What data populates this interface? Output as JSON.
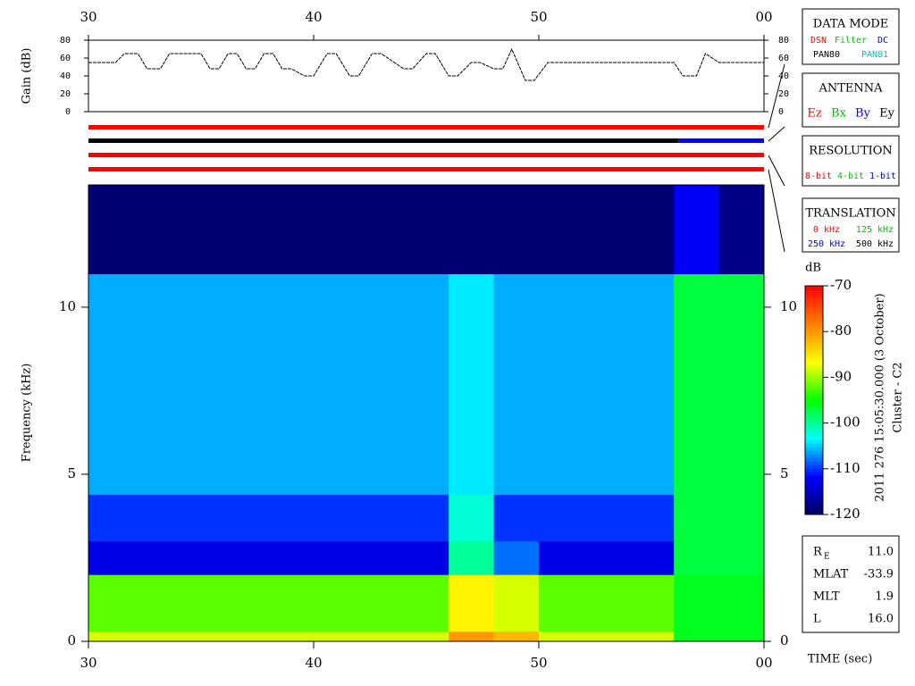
{
  "chart_data": [
    {
      "type": "line",
      "ylabel": "Gain (dB)",
      "x": [
        30,
        31.2,
        31.6,
        32.2,
        32.6,
        33.2,
        33.6,
        35.0,
        35.4,
        35.8,
        36.2,
        36.6,
        37.0,
        37.4,
        37.8,
        38.2,
        38.6,
        39.0,
        39.6,
        40.0,
        40.6,
        41.0,
        41.6,
        42.0,
        42.6,
        43.0,
        44.0,
        44.4,
        45.0,
        45.4,
        46.0,
        46.4,
        47.0,
        47.4,
        48.0,
        48.4,
        48.8,
        49.4,
        49.8,
        50.4,
        56.0,
        56.4,
        57.0,
        57.4,
        58.0,
        60
      ],
      "series": [
        {
          "color": "#000000",
          "values": [
            55,
            55,
            65,
            65,
            48,
            48,
            65,
            65,
            48,
            48,
            65,
            65,
            48,
            48,
            65,
            65,
            48,
            48,
            40,
            40,
            65,
            65,
            40,
            40,
            65,
            65,
            48,
            48,
            65,
            65,
            40,
            40,
            55,
            55,
            48,
            48,
            70,
            35,
            35,
            55,
            55,
            40,
            40,
            65,
            55,
            55
          ]
        }
      ],
      "xlim": [
        30,
        60
      ],
      "xticks": [
        30,
        40,
        50,
        {
          "value": 60,
          "label": "00"
        }
      ],
      "ylim": [
        0,
        80
      ],
      "yticks": [
        0,
        20,
        40,
        60,
        80
      ]
    },
    {
      "type": "timeline",
      "xlim": [
        30,
        60
      ],
      "rows": [
        {
          "segments": [
            {
              "start": 30,
              "end": 60,
              "color": "#ff0000"
            }
          ]
        },
        {
          "segments": [
            {
              "start": 30,
              "end": 56.2,
              "color": "#000000"
            },
            {
              "start": 56.2,
              "end": 60,
              "color": "#0000ff"
            }
          ]
        },
        {
          "segments": [
            {
              "start": 30,
              "end": 60,
              "color": "#ff0000"
            }
          ]
        },
        {
          "segments": [
            {
              "start": 30,
              "end": 60,
              "color": "#ff0000"
            }
          ]
        }
      ]
    },
    {
      "type": "heatmap",
      "ylabel": "Frequency (kHz)",
      "xlabel": "TIME (sec)",
      "x_edges": [
        30,
        32,
        34,
        36,
        38,
        40,
        42,
        44,
        46,
        48,
        50,
        52,
        54,
        56,
        58,
        60
      ],
      "y_edges": [
        0,
        0.3,
        2,
        3,
        4.4,
        11,
        13.66
      ],
      "z": [
        [
          -88,
          -88,
          -88,
          -88,
          -88,
          -88,
          -88,
          -88,
          -80,
          -82,
          -88,
          -88,
          -88,
          -96,
          -96
        ],
        [
          -92,
          -92,
          -92,
          -92,
          -92,
          -92,
          -92,
          -92,
          -86,
          -88,
          -92,
          -92,
          -92,
          -96,
          -96
        ],
        [
          -113,
          -113,
          -113,
          -113,
          -113,
          -113,
          -113,
          -113,
          -100,
          -108,
          -113,
          -113,
          -113,
          -97,
          -97
        ],
        [
          -110,
          -110,
          -110,
          -110,
          -110,
          -110,
          -110,
          -110,
          -102,
          -110,
          -110,
          -110,
          -110,
          -97,
          -97
        ],
        [
          -106,
          -106,
          -106,
          -106,
          -106,
          -106,
          -106,
          -106,
          -104,
          -106,
          -106,
          -106,
          -106,
          -97,
          -97
        ],
        [
          -119,
          -119,
          -119,
          -119,
          -119,
          -119,
          -119,
          -119,
          -119,
          -119,
          -119,
          -119,
          -119,
          -112,
          -118
        ]
      ],
      "xlim": [
        30,
        60
      ],
      "xticks": [
        30,
        40,
        50,
        {
          "value": 60,
          "label": "00"
        }
      ],
      "ylim": [
        0,
        13.66
      ],
      "yticks": [
        0,
        5,
        10
      ],
      "zlabel": "dB",
      "zlim": [
        -120,
        -70
      ],
      "zticks": [
        -70,
        -80,
        -90,
        -100,
        -110,
        -120
      ],
      "colormap": [
        "#000060",
        "#0000ff",
        "#00ffff",
        "#00ff00",
        "#ffff00",
        "#ff8000",
        "#ff0000"
      ]
    }
  ],
  "panels": [
    {
      "title": "DATA MODE",
      "items": [
        {
          "text": "DSN",
          "color": "#ff0000"
        },
        {
          "text": "Filter",
          "color": "#00c000"
        },
        {
          "text": "DC",
          "color": "#0000ff"
        },
        {
          "text": "PAN80",
          "color": "#000000"
        },
        {
          "text": "PAN81",
          "color": "#00c0c0"
        }
      ]
    },
    {
      "title": "ANTENNA",
      "items": [
        {
          "text": "Ez",
          "color": "#ff0000"
        },
        {
          "text": "Bx",
          "color": "#00c000"
        },
        {
          "text": "By",
          "color": "#0000ff"
        },
        {
          "text": "Ey",
          "color": "#000000"
        }
      ]
    },
    {
      "title": "RESOLUTION",
      "items": [
        {
          "text": "8-bit",
          "color": "#ff0000"
        },
        {
          "text": "4-bit",
          "color": "#00c000"
        },
        {
          "text": "1-bit",
          "color": "#0000ff"
        }
      ]
    },
    {
      "title": "TRANSLATION",
      "items": [
        {
          "text": "0 kHz",
          "color": "#ff0000"
        },
        {
          "text": "125 kHz",
          "color": "#00c000"
        },
        {
          "text": "250 kHz",
          "color": "#0000ff"
        },
        {
          "text": "500 kHz",
          "color": "#000000"
        }
      ]
    }
  ],
  "info": [
    [
      "R",
      "E",
      "11.0"
    ],
    [
      "MLAT",
      "",
      "-33.9"
    ],
    [
      "MLT",
      "",
      "1.9"
    ],
    [
      "L",
      "",
      "16.0"
    ]
  ],
  "side_text": [
    "2011 276 15:05:30.000 (3 October)",
    "Cluster - C2"
  ]
}
